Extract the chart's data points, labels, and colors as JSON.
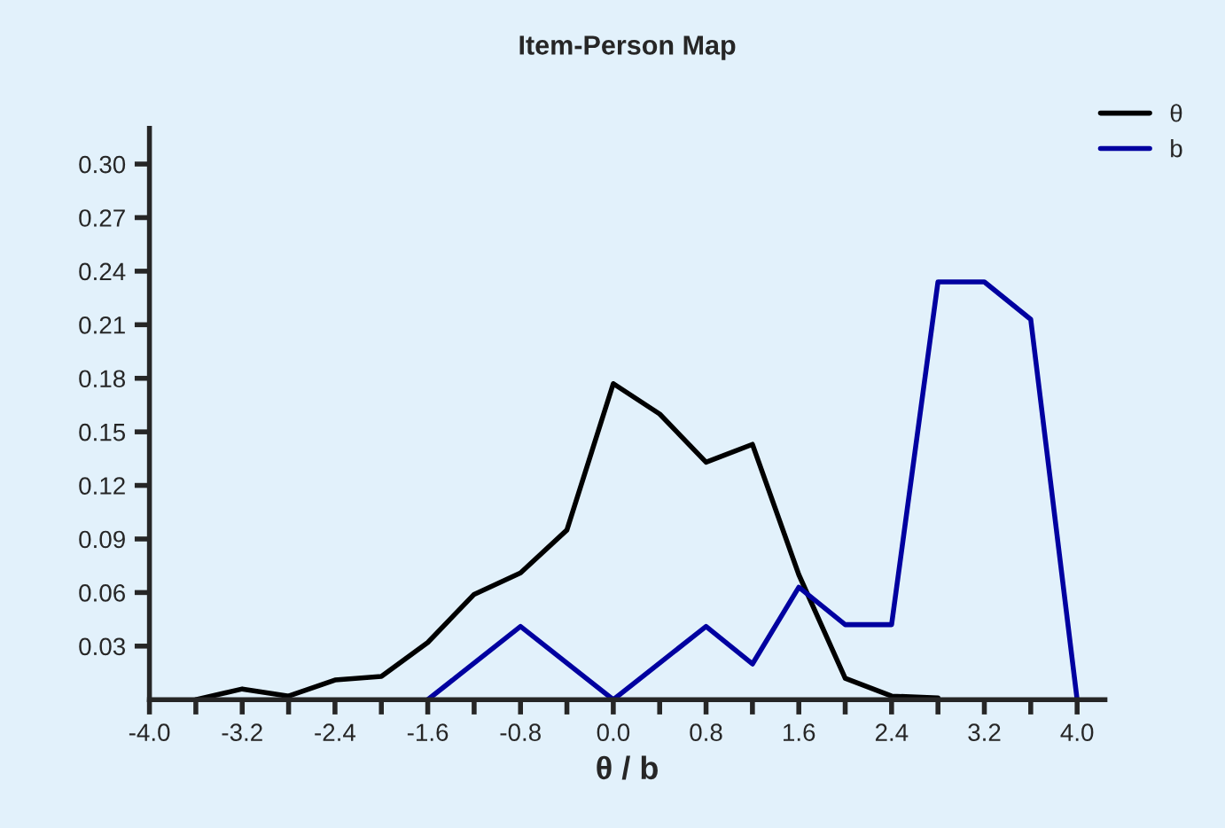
{
  "chart_data": {
    "type": "line",
    "title": "Item-Person Map",
    "xlabel": "θ / b",
    "series": [
      {
        "name": "θ",
        "color": "#000000",
        "x": [
          -3.6,
          -3.2,
          -2.8,
          -2.4,
          -2.0,
          -1.6,
          -1.2,
          -0.8,
          -0.4,
          0.0,
          0.4,
          0.8,
          1.2,
          1.6,
          2.0,
          2.4,
          2.8
        ],
        "values": [
          0.0,
          0.006,
          0.002,
          0.011,
          0.013,
          0.032,
          0.059,
          0.071,
          0.095,
          0.177,
          0.16,
          0.133,
          0.143,
          0.07,
          0.012,
          0.002,
          0.001
        ]
      },
      {
        "name": "b",
        "color": "#0000a0",
        "x": [
          -1.6,
          -0.8,
          0.0,
          0.8,
          1.2,
          1.6,
          2.0,
          2.4,
          2.8,
          3.2,
          3.6,
          4.0
        ],
        "values": [
          0.0,
          0.041,
          0.0,
          0.041,
          0.02,
          0.063,
          0.042,
          0.042,
          0.234,
          0.234,
          0.213,
          0.0
        ]
      }
    ],
    "xlim": [
      -4.0,
      4.24
    ],
    "ylim": [
      0,
      0.32
    ],
    "xticks": [
      {
        "value": -4.0,
        "label": "-4.0"
      },
      {
        "value": -3.6,
        "label": null
      },
      {
        "value": -3.2,
        "label": "-3.2"
      },
      {
        "value": -2.8,
        "label": null
      },
      {
        "value": -2.4,
        "label": "-2.4"
      },
      {
        "value": -2.0,
        "label": null
      },
      {
        "value": -1.6,
        "label": "-1.6"
      },
      {
        "value": -1.2,
        "label": null
      },
      {
        "value": -0.8,
        "label": "-0.8"
      },
      {
        "value": -0.4,
        "label": null
      },
      {
        "value": 0.0,
        "label": "0.0"
      },
      {
        "value": 0.4,
        "label": null
      },
      {
        "value": 0.8,
        "label": "0.8"
      },
      {
        "value": 1.2,
        "label": null
      },
      {
        "value": 1.6,
        "label": "1.6"
      },
      {
        "value": 2.0,
        "label": null
      },
      {
        "value": 2.4,
        "label": "2.4"
      },
      {
        "value": 2.8,
        "label": null
      },
      {
        "value": 3.2,
        "label": "3.2"
      },
      {
        "value": 3.6,
        "label": null
      },
      {
        "value": 4.0,
        "label": "4.0"
      }
    ],
    "yticks": [
      {
        "value": 0.03,
        "label": "0.03"
      },
      {
        "value": 0.06,
        "label": "0.06"
      },
      {
        "value": 0.09,
        "label": "0.09"
      },
      {
        "value": 0.12,
        "label": "0.12"
      },
      {
        "value": 0.15,
        "label": "0.15"
      },
      {
        "value": 0.18,
        "label": "0.18"
      },
      {
        "value": 0.21,
        "label": "0.21"
      },
      {
        "value": 0.24,
        "label": "0.24"
      },
      {
        "value": 0.27,
        "label": "0.27"
      },
      {
        "value": 0.3,
        "label": "0.30"
      }
    ],
    "grid": false,
    "legend": "top right",
    "marker": "none",
    "line_style": "solid"
  }
}
